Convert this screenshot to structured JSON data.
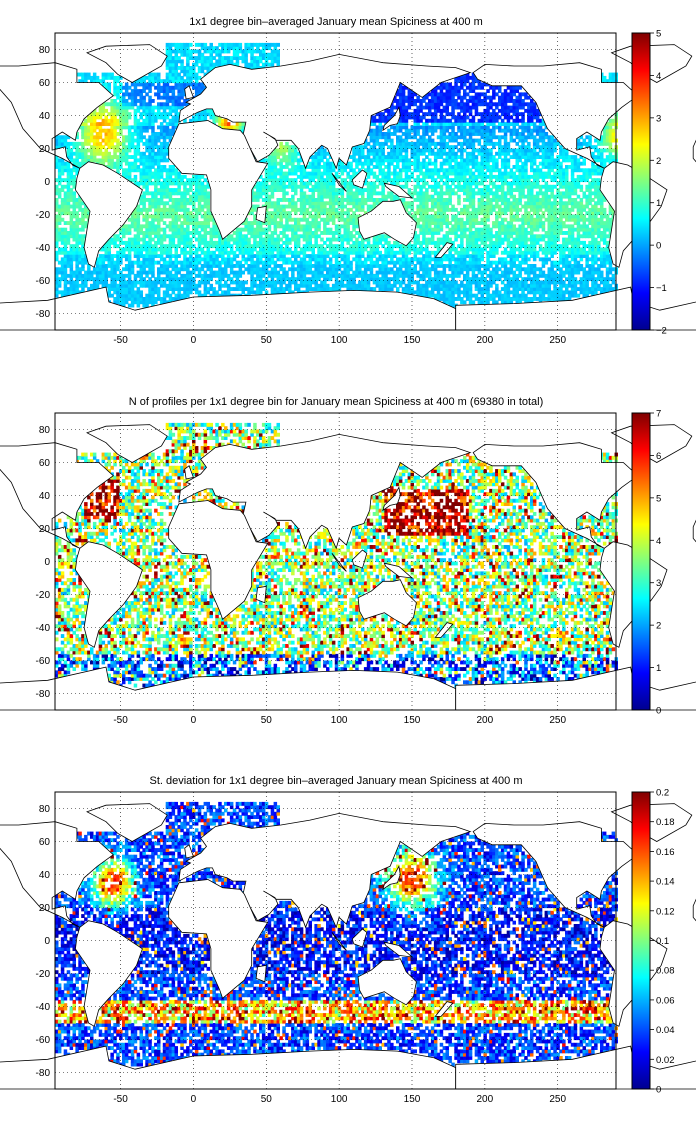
{
  "chart_data": [
    {
      "type": "heatmap",
      "title": "1x1 degree bin–averaged January mean Spiciness at 400 m",
      "xlim": [
        -95,
        290
      ],
      "ylim": [
        -90,
        90
      ],
      "xticks": [
        -50,
        0,
        50,
        100,
        150,
        200,
        250
      ],
      "yticks": [
        -80,
        -60,
        -40,
        -20,
        0,
        20,
        40,
        60,
        80
      ],
      "grid": true,
      "colormap": "jet",
      "colorbar": {
        "min": -2,
        "max": 5,
        "ticks": [
          -2,
          -1,
          0,
          1,
          2,
          3,
          4,
          5
        ],
        "labels": [
          "−2",
          "−1",
          "0",
          "1",
          "2",
          "3",
          "4",
          "5"
        ]
      }
    },
    {
      "type": "heatmap",
      "title": "N of profiles per 1x1 degree bin for January mean Spiciness at 400 m (69380 in total)",
      "xlim": [
        -95,
        290
      ],
      "ylim": [
        -90,
        90
      ],
      "xticks": [
        -50,
        0,
        50,
        100,
        150,
        200,
        250
      ],
      "yticks": [
        -80,
        -60,
        -40,
        -20,
        0,
        20,
        40,
        60,
        80
      ],
      "grid": true,
      "colormap": "jet",
      "colorbar": {
        "min": 0,
        "max": 7,
        "ticks": [
          0,
          1,
          2,
          3,
          4,
          5,
          6,
          7
        ],
        "labels": [
          "0",
          "1",
          "2",
          "3",
          "4",
          "5",
          "6",
          "7"
        ]
      }
    },
    {
      "type": "heatmap",
      "title": "St. deviation for 1x1 degree bin–averaged January mean Spiciness at 400 m",
      "xlim": [
        -95,
        290
      ],
      "ylim": [
        -90,
        90
      ],
      "xticks": [
        -50,
        0,
        50,
        100,
        150,
        200,
        250
      ],
      "yticks": [
        -80,
        -60,
        -40,
        -20,
        0,
        20,
        40,
        60,
        80
      ],
      "grid": true,
      "colormap": "jet",
      "colorbar": {
        "min": 0,
        "max": 0.2,
        "ticks": [
          0,
          0.02,
          0.04,
          0.06,
          0.08,
          0.1,
          0.12,
          0.14,
          0.16,
          0.18,
          0.2
        ],
        "labels": [
          "0",
          "0.02",
          "0.04",
          "0.06",
          "0.08",
          "0.1",
          "0.12",
          "0.14",
          "0.16",
          "0.18",
          "0.2"
        ]
      }
    }
  ]
}
